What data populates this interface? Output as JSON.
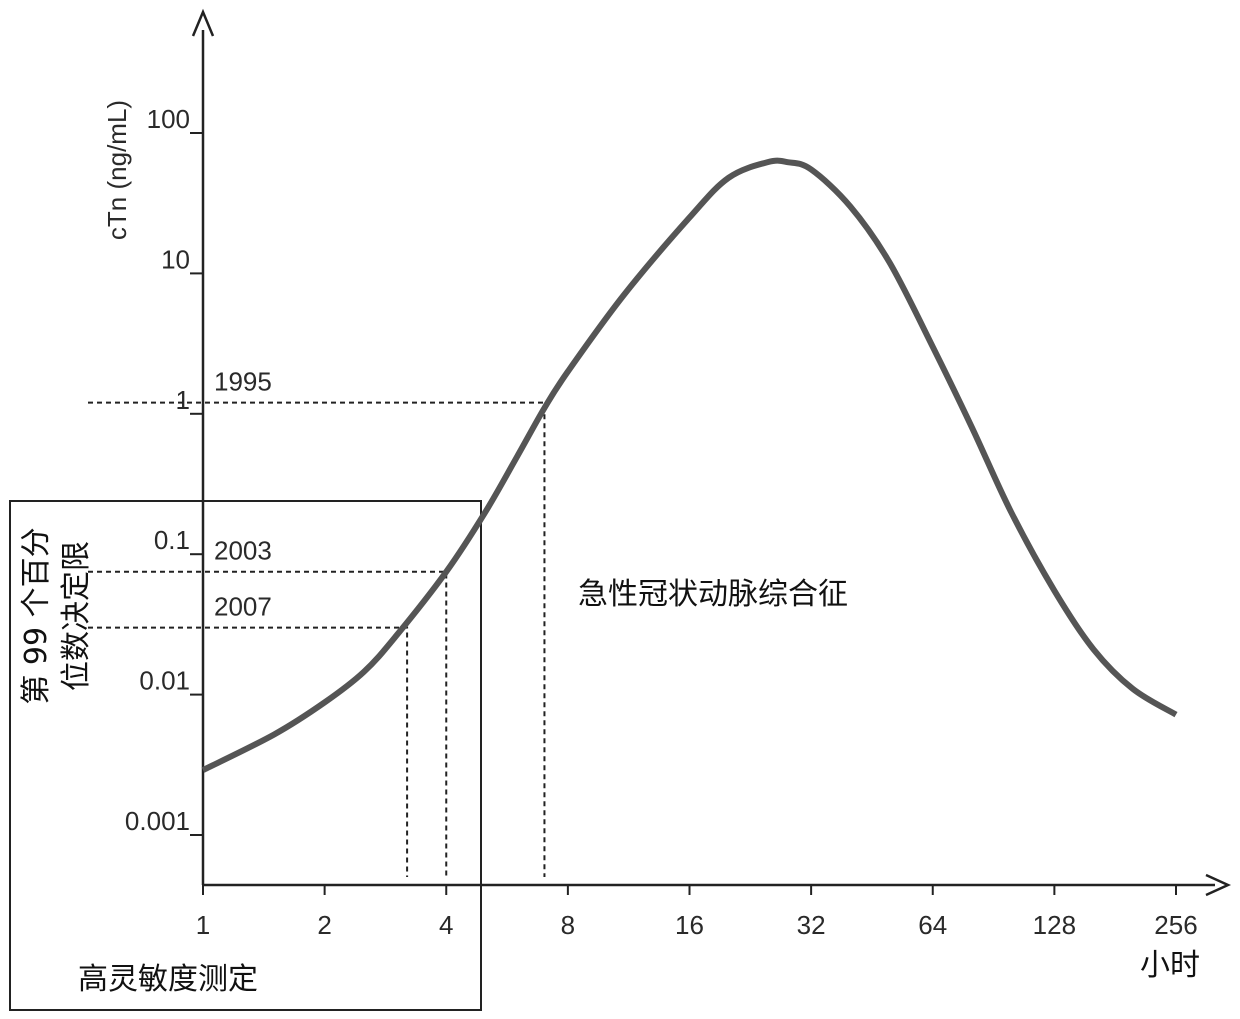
{
  "chart_data": {
    "type": "line",
    "title": "",
    "xlabel": "小时",
    "ylabel": "cTn (ng/mL)",
    "x_scale": "log2",
    "y_scale": "log10",
    "xlim": [
      1,
      256
    ],
    "ylim": [
      0.001,
      100
    ],
    "x_ticks": [
      {
        "value": 1,
        "label": "1"
      },
      {
        "value": 2,
        "label": "2"
      },
      {
        "value": 4,
        "label": "4"
      },
      {
        "value": 8,
        "label": "8"
      },
      {
        "value": 16,
        "label": "16"
      },
      {
        "value": 32,
        "label": "32"
      },
      {
        "value": 64,
        "label": "64"
      },
      {
        "value": 128,
        "label": "128"
      },
      {
        "value": 256,
        "label": "256"
      }
    ],
    "y_ticks": [
      {
        "value": 0.001,
        "label": "0.001"
      },
      {
        "value": 0.01,
        "label": "0.01"
      },
      {
        "value": 0.1,
        "label": "0.1"
      },
      {
        "value": 1,
        "label": "1"
      },
      {
        "value": 10,
        "label": "10"
      },
      {
        "value": 100,
        "label": "100"
      }
    ],
    "series": [
      {
        "color": "#555555",
        "points": [
          {
            "x": 1.0,
            "y": 0.0029
          },
          {
            "x": 1.5,
            "y": 0.0052
          },
          {
            "x": 2.0,
            "y": 0.0088
          },
          {
            "x": 2.5,
            "y": 0.0145
          },
          {
            "x": 3.0,
            "y": 0.026
          },
          {
            "x": 4.0,
            "y": 0.075
          },
          {
            "x": 5.0,
            "y": 0.2
          },
          {
            "x": 6.0,
            "y": 0.5
          },
          {
            "x": 7.0,
            "y": 1.1
          },
          {
            "x": 8.0,
            "y": 2.0
          },
          {
            "x": 11.0,
            "y": 7.0
          },
          {
            "x": 16.0,
            "y": 25
          },
          {
            "x": 20.0,
            "y": 48
          },
          {
            "x": 25.0,
            "y": 62
          },
          {
            "x": 28.0,
            "y": 62
          },
          {
            "x": 32.0,
            "y": 55
          },
          {
            "x": 40.0,
            "y": 30
          },
          {
            "x": 50.0,
            "y": 12
          },
          {
            "x": 64.0,
            "y": 3.0
          },
          {
            "x": 80.0,
            "y": 0.8
          },
          {
            "x": 100.0,
            "y": 0.2
          },
          {
            "x": 128.0,
            "y": 0.055
          },
          {
            "x": 160.0,
            "y": 0.021
          },
          {
            "x": 200.0,
            "y": 0.011
          },
          {
            "x": 256.0,
            "y": 0.0072
          }
        ]
      }
    ],
    "reference_lines": [
      {
        "label": "1995",
        "y": 1.2,
        "x": 7.0
      },
      {
        "label": "2003",
        "y": 0.075,
        "x": 4.0
      },
      {
        "label": "2007",
        "y": 0.03,
        "x": 3.2
      }
    ],
    "annotations": {
      "vertical_label_line1": "第 99 个百分",
      "vertical_label_line2": "位数决定限",
      "region_label": "急性冠状动脉综合征",
      "box_label": "高灵敏度测定"
    }
  }
}
